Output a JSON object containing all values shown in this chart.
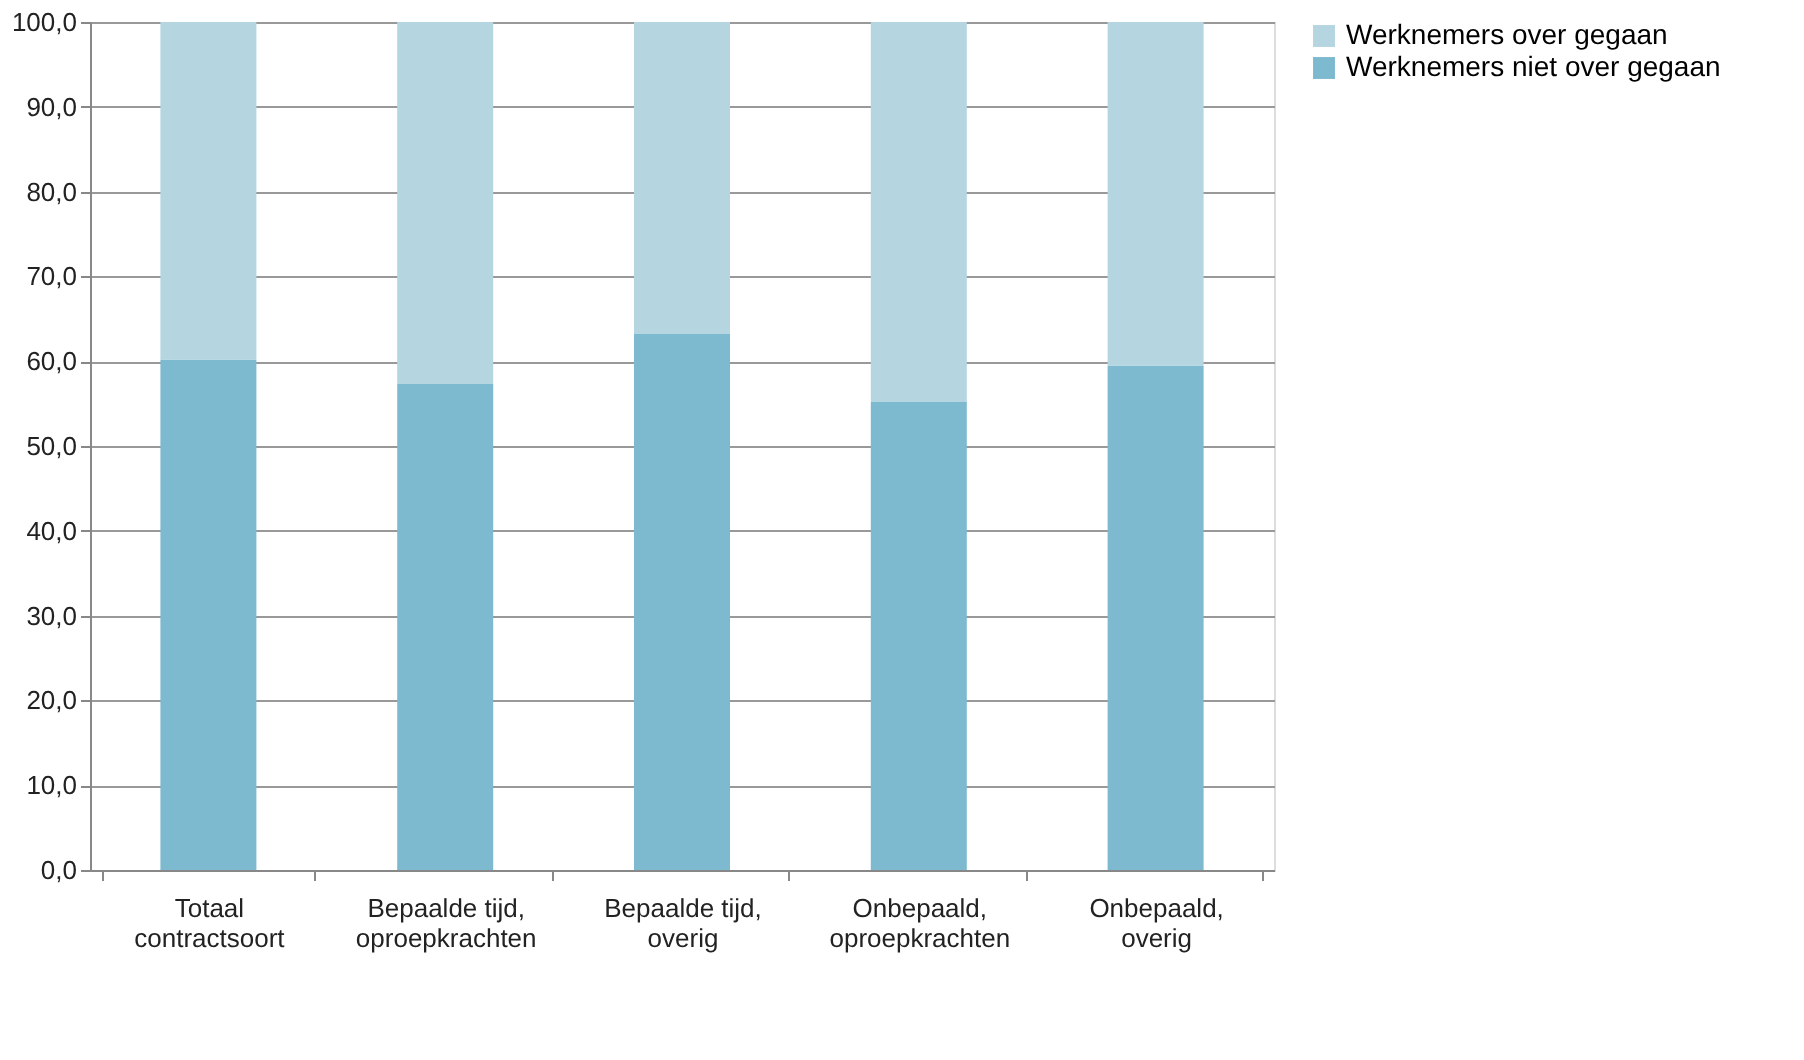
{
  "chart_data": {
    "type": "bar",
    "stacked": true,
    "categories": [
      "Totaal contractsoort",
      "Bepaalde tijd, oproepkrachten",
      "Bepaalde tijd, overig",
      "Onbepaald, oproepkrachten",
      "Onbepaald, overig"
    ],
    "series": [
      {
        "name": "Werknemers niet over gegaan",
        "color": "#7db9cf",
        "values": [
          60.2,
          57.3,
          63.2,
          55.2,
          59.5
        ]
      },
      {
        "name": "Werknemers over gegaan",
        "color": "#b5d5e1",
        "values": [
          39.8,
          42.7,
          36.8,
          44.8,
          40.5
        ]
      }
    ],
    "ylim": [
      0,
      100
    ],
    "yticks": [
      {
        "value": 0,
        "label": "0,0"
      },
      {
        "value": 10,
        "label": "10,0"
      },
      {
        "value": 20,
        "label": "20,0"
      },
      {
        "value": 30,
        "label": "30,0"
      },
      {
        "value": 40,
        "label": "40,0"
      },
      {
        "value": 50,
        "label": "50,0"
      },
      {
        "value": 60,
        "label": "60,0"
      },
      {
        "value": 70,
        "label": "70,0"
      },
      {
        "value": 80,
        "label": "80,0"
      },
      {
        "value": 90,
        "label": "90,0"
      },
      {
        "value": 100,
        "label": "100,0"
      }
    ],
    "grid": "y",
    "legend": "right"
  }
}
